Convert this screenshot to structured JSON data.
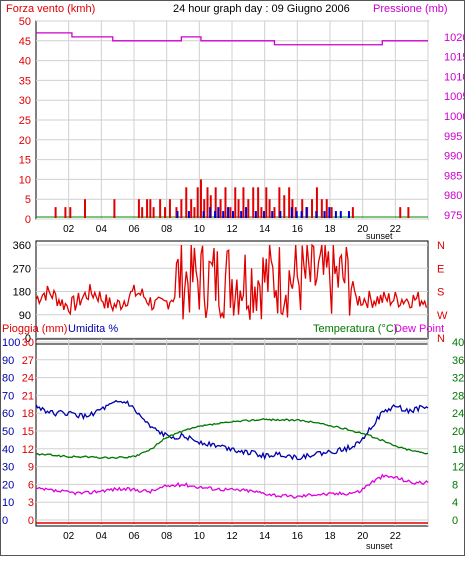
{
  "header": {
    "title": "24 hour graph day : 09 Giugno 2006",
    "wind_label": "Forza vento (kmh)",
    "pressure_label": "Pressione (mb)",
    "rain_label": "Pioggia (mm)",
    "humidity_label": "Umidita %",
    "temperature_label": "Temperatura (°C)",
    "dewpoint_label": "Dew Point",
    "sunset_label": "sunset"
  },
  "colors": {
    "wind_gust": "#e00000",
    "wind_avg": "#0000cc",
    "pressure": "#cc00cc",
    "direction": "#e00000",
    "rain": "#e00000",
    "humidity": "#0000aa",
    "temperature": "#007700",
    "dewpoint": "#dd00dd",
    "gridline": "#d0d0d0",
    "zero_line": "#008800"
  },
  "chart_data": [
    {
      "type": "bar",
      "x_ticks": [
        "02",
        "04",
        "06",
        "08",
        "10",
        "12",
        "14",
        "16",
        "18",
        "20",
        "22",
        ""
      ],
      "xlim": [
        0,
        24
      ],
      "ylabel_left": "Forza vento (kmh)",
      "ylabel_right": "Pressione (mb)",
      "y_left_ticks": [
        "0",
        "5",
        "10",
        "15",
        "20",
        "25",
        "30",
        "35",
        "40",
        "45",
        "50"
      ],
      "y_left_lim": [
        0,
        50
      ],
      "y_right_ticks": [
        "975",
        "980",
        "985",
        "990",
        "995",
        "1000",
        "1005",
        "1010",
        "1015",
        "1020"
      ],
      "y_right_lim": [
        974,
        1024
      ],
      "wind_gust_bars": [
        [
          1.2,
          3
        ],
        [
          1.8,
          3
        ],
        [
          2.1,
          3
        ],
        [
          3.0,
          5
        ],
        [
          4.8,
          5
        ],
        [
          6.3,
          5
        ],
        [
          6.5,
          3
        ],
        [
          6.8,
          5
        ],
        [
          7.0,
          5
        ],
        [
          7.2,
          3
        ],
        [
          7.6,
          5
        ],
        [
          7.9,
          3
        ],
        [
          8.2,
          5
        ],
        [
          8.6,
          3
        ],
        [
          8.9,
          5
        ],
        [
          9.2,
          8
        ],
        [
          9.5,
          5
        ],
        [
          9.7,
          3
        ],
        [
          9.9,
          8
        ],
        [
          10.1,
          10
        ],
        [
          10.3,
          5
        ],
        [
          10.5,
          8
        ],
        [
          10.7,
          6
        ],
        [
          11.0,
          8
        ],
        [
          11.3,
          5
        ],
        [
          11.6,
          8
        ],
        [
          11.9,
          3
        ],
        [
          12.2,
          8
        ],
        [
          12.4,
          5
        ],
        [
          12.7,
          8
        ],
        [
          13.0,
          5
        ],
        [
          13.3,
          8
        ],
        [
          13.6,
          8
        ],
        [
          13.8,
          3
        ],
        [
          14.1,
          8
        ],
        [
          14.3,
          5
        ],
        [
          14.6,
          3
        ],
        [
          14.9,
          8
        ],
        [
          15.2,
          6
        ],
        [
          15.5,
          8
        ],
        [
          15.7,
          5
        ],
        [
          15.9,
          3
        ],
        [
          16.3,
          5
        ],
        [
          16.6,
          3
        ],
        [
          16.9,
          5
        ],
        [
          17.2,
          8
        ],
        [
          17.5,
          5
        ],
        [
          17.8,
          5
        ],
        [
          18.1,
          3
        ],
        [
          19.4,
          3
        ],
        [
          22.3,
          3
        ],
        [
          22.8,
          3
        ]
      ],
      "wind_avg_bars": [
        [
          8.6,
          2
        ],
        [
          9.3,
          2
        ],
        [
          10.2,
          2
        ],
        [
          10.6,
          3
        ],
        [
          10.9,
          2
        ],
        [
          11.1,
          3
        ],
        [
          11.4,
          2
        ],
        [
          11.7,
          3
        ],
        [
          12.0,
          2
        ],
        [
          12.5,
          2
        ],
        [
          12.8,
          3
        ],
        [
          13.4,
          2
        ],
        [
          13.9,
          2
        ],
        [
          14.4,
          2
        ],
        [
          14.9,
          2
        ],
        [
          15.6,
          3
        ],
        [
          15.9,
          2
        ],
        [
          16.2,
          2
        ],
        [
          16.5,
          3
        ],
        [
          17.1,
          2
        ],
        [
          17.6,
          2
        ],
        [
          17.9,
          3
        ],
        [
          18.3,
          2
        ],
        [
          18.6,
          2
        ],
        [
          19.1,
          2
        ]
      ],
      "pressure_series": [
        [
          0,
          1021
        ],
        [
          2.2,
          1021
        ],
        [
          2.2,
          1020
        ],
        [
          4.7,
          1020
        ],
        [
          4.7,
          1019
        ],
        [
          8.9,
          1019
        ],
        [
          8.9,
          1020
        ],
        [
          10.1,
          1020
        ],
        [
          10.1,
          1019
        ],
        [
          14.6,
          1019
        ],
        [
          14.6,
          1018
        ],
        [
          21.2,
          1018
        ],
        [
          21.2,
          1019
        ],
        [
          24,
          1019
        ]
      ]
    },
    {
      "type": "scatter",
      "ylabel_right": "N W S E N",
      "direction_ticks": [
        "0",
        "90",
        "180",
        "270",
        "360"
      ],
      "y_lim": [
        0,
        360
      ],
      "x_lim": [
        0,
        24
      ]
    },
    {
      "type": "line",
      "x_ticks": [
        "02",
        "04",
        "06",
        "08",
        "10",
        "12",
        "14",
        "16",
        "18",
        "20",
        "22",
        ""
      ],
      "xlim": [
        0,
        24
      ],
      "rain_ticks": [
        "0",
        "3",
        "6",
        "9",
        "12",
        "15",
        "18",
        "21",
        "24",
        "27",
        "30"
      ],
      "rain_lim": [
        0,
        30
      ],
      "humidity_ticks": [
        "0",
        "10",
        "20",
        "30",
        "40",
        "50",
        "60",
        "70",
        "80",
        "90",
        "100"
      ],
      "humidity_lim": [
        0,
        100
      ],
      "temperature_ticks": [
        "0",
        "4",
        "8",
        "12",
        "16",
        "20",
        "24",
        "28",
        "32",
        "36",
        "40"
      ],
      "temperature_lim": [
        0,
        40
      ],
      "rain_values": [
        [
          0,
          0
        ],
        [
          24,
          0
        ]
      ],
      "humidity_series": [
        [
          0,
          64
        ],
        [
          1,
          60
        ],
        [
          2,
          60
        ],
        [
          3,
          58
        ],
        [
          4,
          62
        ],
        [
          5,
          66
        ],
        [
          5.6,
          66
        ],
        [
          6.2,
          60
        ],
        [
          7,
          52
        ],
        [
          8,
          47
        ],
        [
          9,
          47
        ],
        [
          10,
          44
        ],
        [
          11,
          42
        ],
        [
          12,
          40
        ],
        [
          13,
          38
        ],
        [
          14,
          36
        ],
        [
          15,
          37
        ],
        [
          16,
          35
        ],
        [
          17,
          37
        ],
        [
          18,
          38
        ],
        [
          19,
          40
        ],
        [
          19.8,
          44
        ],
        [
          20.5,
          52
        ],
        [
          21.2,
          60
        ],
        [
          22,
          64
        ],
        [
          22.8,
          61
        ],
        [
          23.5,
          63
        ],
        [
          24,
          63
        ]
      ],
      "temperature_series": [
        [
          0,
          14.8
        ],
        [
          1,
          14.6
        ],
        [
          2,
          14.2
        ],
        [
          3,
          14.2
        ],
        [
          4,
          14.0
        ],
        [
          5,
          14.0
        ],
        [
          6,
          14.2
        ],
        [
          7,
          15.8
        ],
        [
          8,
          18.6
        ],
        [
          9,
          20.0
        ],
        [
          10,
          21.0
        ],
        [
          11,
          21.6
        ],
        [
          12,
          22.0
        ],
        [
          13,
          22.4
        ],
        [
          14,
          22.6
        ],
        [
          15,
          22.5
        ],
        [
          16,
          22.4
        ],
        [
          17,
          22.0
        ],
        [
          18,
          21.2
        ],
        [
          19,
          20.4
        ],
        [
          20,
          19.5
        ],
        [
          21,
          18.2
        ],
        [
          22,
          16.6
        ],
        [
          23,
          15.6
        ],
        [
          24,
          15.0
        ]
      ],
      "dewpoint_series": [
        [
          0,
          7.0
        ],
        [
          1,
          6.6
        ],
        [
          2,
          6.2
        ],
        [
          3,
          6.0
        ],
        [
          4,
          6.6
        ],
        [
          5,
          7.0
        ],
        [
          6,
          6.8
        ],
        [
          7,
          6.4
        ],
        [
          8,
          7.6
        ],
        [
          9,
          8.0
        ],
        [
          10,
          7.4
        ],
        [
          11,
          7.0
        ],
        [
          12,
          6.8
        ],
        [
          13,
          6.6
        ],
        [
          14,
          6.0
        ],
        [
          15,
          5.4
        ],
        [
          16,
          5.2
        ],
        [
          17,
          5.8
        ],
        [
          18,
          5.8
        ],
        [
          19,
          6.0
        ],
        [
          19.8,
          6.4
        ],
        [
          20.5,
          8.4
        ],
        [
          21.2,
          9.8
        ],
        [
          22,
          9.6
        ],
        [
          23,
          8.4
        ],
        [
          24,
          8.4
        ]
      ]
    }
  ]
}
